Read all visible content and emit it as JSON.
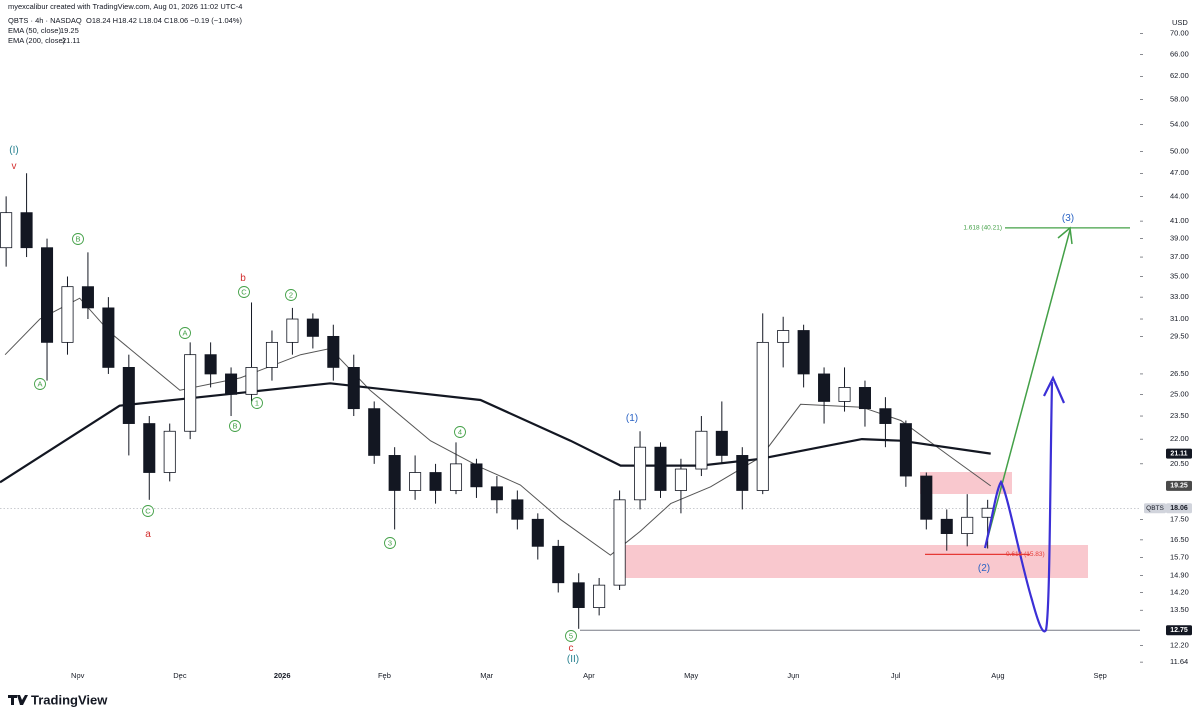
{
  "header": {
    "author_line": "myexcalibur created with TradingView.com, Aug 01, 2026 11:02 UTC-4",
    "symbol_line": "QBTS · 4h · NASDAQ",
    "ohlc": "O18.24 H18.42 L18.04 C18.06 −0.19 (−1.04%)",
    "currency": "USD",
    "brand": "TradingView"
  },
  "chart_data": {
    "type": "candlestick",
    "log_scale": true,
    "up_color": "#ffffff",
    "down_color": "#131722",
    "wick_color": "#131722",
    "x": [
      0.3,
      0.5,
      0.7,
      0.9,
      1.1,
      1.3,
      1.5,
      1.7,
      1.9,
      2.1,
      2.3,
      2.5,
      2.7,
      2.9,
      3.1,
      3.3,
      3.5,
      3.7,
      3.9,
      4.1,
      4.3,
      4.5,
      4.7,
      4.9,
      5.1,
      5.3,
      5.5,
      5.7,
      5.9,
      6.1,
      6.3,
      6.5,
      6.7,
      6.9,
      7.1,
      7.3,
      7.5,
      7.7,
      7.9,
      8.1,
      8.3,
      8.5,
      8.7,
      8.9,
      9.1,
      9.3,
      9.5,
      9.7,
      9.9
    ],
    "open": [
      38,
      42,
      38,
      29,
      34,
      32,
      27,
      23,
      20,
      22.5,
      28,
      26.5,
      25,
      27,
      29,
      31,
      29.5,
      27,
      24,
      21,
      19,
      20,
      19,
      20.5,
      19.2,
      18.5,
      17.5,
      16.2,
      14.6,
      13.6,
      14.5,
      18.5,
      21.5,
      19,
      20.2,
      22.5,
      21,
      19,
      29,
      30,
      26.5,
      24.5,
      25.5,
      24,
      23,
      19.8,
      17.5,
      16.8,
      17.6
    ],
    "high": [
      44,
      47,
      39,
      35,
      37.5,
      33,
      28,
      23.5,
      23,
      29,
      29,
      27,
      32.5,
      30,
      32,
      31.5,
      30.5,
      28,
      24.5,
      21.5,
      21,
      20.5,
      21.8,
      20.8,
      19.8,
      19,
      17.8,
      16.5,
      15,
      14.8,
      19,
      22.5,
      21.8,
      20.8,
      23.5,
      24.5,
      21.5,
      31.5,
      31.2,
      30.5,
      27,
      27,
      26,
      24.8,
      23.2,
      20,
      18,
      18.8,
      18.5
    ],
    "low": [
      36,
      37,
      26,
      28,
      31,
      26.5,
      21,
      18.5,
      19.5,
      22,
      25.5,
      23.5,
      24.5,
      26,
      28,
      28.5,
      26,
      23.5,
      20.5,
      17,
      18.5,
      18.3,
      18.8,
      18.6,
      17.8,
      17,
      15.6,
      14.2,
      12.8,
      13.3,
      14.3,
      18,
      18.6,
      17.8,
      19.8,
      20.5,
      18,
      18.8,
      27,
      25.5,
      23,
      23.8,
      22.8,
      21.5,
      19.2,
      17,
      16,
      16.2,
      16.1
    ],
    "close": [
      42,
      38,
      29,
      34,
      32,
      27,
      23,
      20,
      22.5,
      28,
      26.5,
      25,
      27,
      29,
      31,
      29.5,
      27,
      24,
      21,
      19,
      20,
      19,
      20.5,
      19.2,
      18.5,
      17.5,
      16.2,
      14.6,
      13.6,
      14.5,
      18.5,
      21.5,
      19,
      20.2,
      22.5,
      21,
      19,
      29,
      30,
      26.5,
      24.5,
      25.5,
      24,
      23,
      19.8,
      17.5,
      16.8,
      17.6,
      18.06
    ],
    "overlays": [
      {
        "name": "EMA (50, close)",
        "legend_value": 19.25,
        "color": "#555555",
        "width": 1,
        "x": [
          0.29,
          0.63,
          1.02,
          1.32,
          2.0,
          2.59,
          3.18,
          3.47,
          3.86,
          4.45,
          4.94,
          5.33,
          5.72,
          6.21,
          6.5,
          6.8,
          7.19,
          7.68,
          8.07,
          8.67,
          9.05,
          9.54,
          9.93
        ],
        "values": [
          28.0,
          31.0,
          32.9,
          29.8,
          25.3,
          26.2,
          28.0,
          28.5,
          25.3,
          21.9,
          20.3,
          19.3,
          17.5,
          15.8,
          16.9,
          18.3,
          19.2,
          20.9,
          24.3,
          24.1,
          23.2,
          20.9,
          19.25
        ]
      },
      {
        "name": "EMA (200, close)",
        "legend_value": 21.11,
        "color": "#131722",
        "width": 2.2,
        "x": [
          0.24,
          1.41,
          3.47,
          4.94,
          5.82,
          6.31,
          7.09,
          7.68,
          8.67,
          9.05,
          9.93
        ],
        "values": [
          19.45,
          24.2,
          25.8,
          24.6,
          21.9,
          20.4,
          20.4,
          20.8,
          22.0,
          21.9,
          21.11
        ]
      }
    ],
    "xlim": [
      0.24,
      11.39
    ],
    "xticks": [
      {
        "value": 1,
        "label": "Nov"
      },
      {
        "value": 2,
        "label": "Dec"
      },
      {
        "value": 3,
        "label": "2026"
      },
      {
        "value": 4,
        "label": "Feb"
      },
      {
        "value": 5,
        "label": "Mar"
      },
      {
        "value": 6,
        "label": "Apr"
      },
      {
        "value": 7,
        "label": "May"
      },
      {
        "value": 8,
        "label": "Jun"
      },
      {
        "value": 9,
        "label": "Jul"
      },
      {
        "value": 10,
        "label": "Aug"
      },
      {
        "value": 11,
        "label": "Sep"
      }
    ],
    "ylim": [
      11.06,
      72.8
    ],
    "yticks": [
      {
        "value": 70,
        "label": "70.00"
      },
      {
        "value": 66,
        "label": "66.00"
      },
      {
        "value": 62,
        "label": "62.00"
      },
      {
        "value": 58,
        "label": "58.00"
      },
      {
        "value": 54,
        "label": "54.00"
      },
      {
        "value": 50,
        "label": "50.00"
      },
      {
        "value": 47,
        "label": "47.00"
      },
      {
        "value": 44,
        "label": "44.00"
      },
      {
        "value": 41,
        "label": "41.00"
      },
      {
        "value": 39,
        "label": "39.00"
      },
      {
        "value": 37,
        "label": "37.00"
      },
      {
        "value": 35,
        "label": "35.00"
      },
      {
        "value": 33,
        "label": "33.00"
      },
      {
        "value": 31,
        "label": "31.00"
      },
      {
        "value": 29.5,
        "label": "29.50"
      },
      {
        "value": 26.5,
        "label": "26.50"
      },
      {
        "value": 25,
        "label": "25.00"
      },
      {
        "value": 23.5,
        "label": "23.50"
      },
      {
        "value": 22,
        "label": "22.00"
      },
      {
        "value": 20.5,
        "label": "20.50"
      },
      {
        "value": 17.5,
        "label": "17.50"
      },
      {
        "value": 16.5,
        "label": "16.50"
      },
      {
        "value": 15.7,
        "label": "15.70"
      },
      {
        "value": 14.9,
        "label": "14.90"
      },
      {
        "value": 14.2,
        "label": "14.20"
      },
      {
        "value": 13.5,
        "label": "13.50"
      },
      {
        "value": 12.2,
        "label": "12.20"
      },
      {
        "value": 11.64,
        "label": "11.64"
      }
    ],
    "price_tags": [
      {
        "value": 21.11,
        "color": "#131722",
        "text_color": "#ffffff"
      },
      {
        "value": 19.25,
        "color": "#4a4a4a",
        "text_color": "#ffffff"
      },
      {
        "value": 18.06,
        "color": "#d1d4dc",
        "text_color": "#131722",
        "name": "QBTS"
      },
      {
        "value": 12.75,
        "color": "#131722",
        "text_color": "#ffffff"
      }
    ],
    "fib_levels": [
      {
        "label": "1.618 (40.21)",
        "value": 40.21,
        "color": "#43a047"
      },
      {
        "label": "0.618 (15.83)",
        "value": 15.83,
        "color": "#e53935"
      }
    ],
    "waves": [
      {
        "text": "(I)",
        "color": "#26808f",
        "circle": false
      },
      {
        "text": "v",
        "color": "#d32f2f",
        "circle": false
      },
      {
        "text": "A",
        "color": "#43a047",
        "circle": true
      },
      {
        "text": "B",
        "color": "#43a047",
        "circle": true
      },
      {
        "text": "C",
        "color": "#43a047",
        "circle": true
      },
      {
        "text": "a",
        "color": "#d32f2f",
        "circle": false
      },
      {
        "text": "A",
        "color": "#43a047",
        "circle": true
      },
      {
        "text": "B",
        "color": "#43a047",
        "circle": true
      },
      {
        "text": "1",
        "color": "#43a047",
        "circle": true
      },
      {
        "text": "b",
        "color": "#d32f2f",
        "circle": false
      },
      {
        "text": "C",
        "color": "#43a047",
        "circle": true
      },
      {
        "text": "2",
        "color": "#43a047",
        "circle": true
      },
      {
        "text": "3",
        "color": "#43a047",
        "circle": true
      },
      {
        "text": "4",
        "color": "#43a047",
        "circle": true
      },
      {
        "text": "5",
        "color": "#43a047",
        "circle": true
      },
      {
        "text": "c",
        "color": "#d32f2f",
        "circle": false
      },
      {
        "text": "(II)",
        "color": "#26808f",
        "circle": false
      },
      {
        "text": "(1)",
        "color": "#2962c4",
        "circle": false
      },
      {
        "text": "(2)",
        "color": "#2962c4",
        "circle": false
      },
      {
        "text": "(3)",
        "color": "#2962c4",
        "circle": false
      }
    ]
  }
}
